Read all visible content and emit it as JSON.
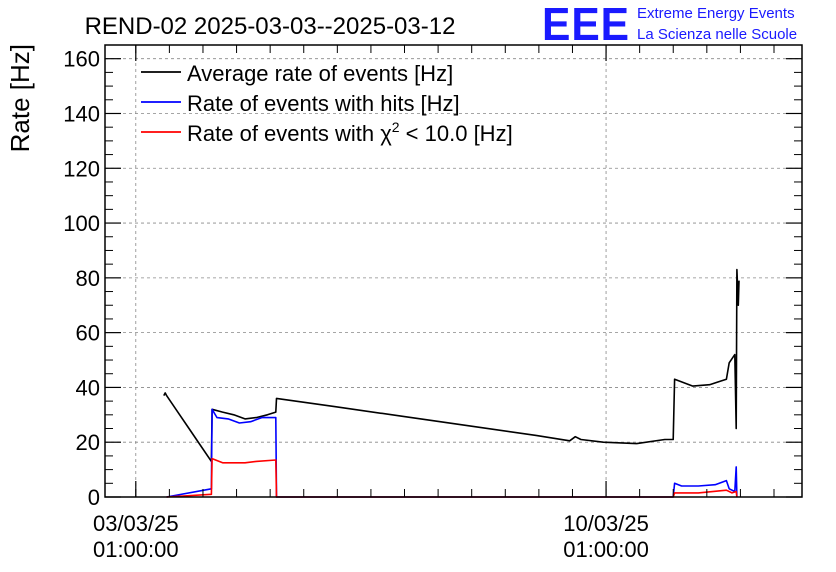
{
  "logo": {
    "mark": "EEE",
    "line1": "Extreme Energy Events",
    "line2": "La Scienza nelle Scuole",
    "color": "#1a1aff"
  },
  "chart_data": {
    "type": "line",
    "title": "REND-02 2025-03-03--2025-03-12",
    "xlabel": "",
    "ylabel": "Rate [Hz]",
    "ylim": [
      0,
      165
    ],
    "yticks": [
      0,
      20,
      40,
      60,
      80,
      100,
      120,
      140,
      160
    ],
    "xlim": [
      "2025-03-02T14:00",
      "2025-03-12T23:00"
    ],
    "xticks": [
      {
        "at": "2025-03-03T01:00",
        "date": "03/03/25",
        "time": "01:00:00"
      },
      {
        "at": "2025-03-10T01:00",
        "date": "10/03/25",
        "time": "01:00:00"
      }
    ],
    "grid": true,
    "legend_position": "top-left",
    "legend": [
      {
        "series": 0,
        "label_main": "Average rate of events [Hz]",
        "label_sup": "",
        "label_tail": ""
      },
      {
        "series": 1,
        "label_main": "Rate of events with hits [Hz]",
        "label_sup": "",
        "label_tail": ""
      },
      {
        "series": 2,
        "label_main": "Rate of events with χ",
        "label_sup": "2",
        "label_tail": " < 10.0 [Hz]"
      }
    ],
    "series": [
      {
        "name": "Average rate of events [Hz]",
        "color": "#000000",
        "points": [
          [
            "2025-03-03T11:00",
            37
          ],
          [
            "2025-03-03T11:30",
            38
          ],
          [
            "2025-03-03T12:00",
            37
          ],
          [
            "2025-03-03T16:00",
            31
          ],
          [
            "2025-03-03T20:00",
            25
          ],
          [
            "2025-03-04T00:00",
            19
          ],
          [
            "2025-03-04T04:00",
            13
          ],
          [
            "2025-03-04T04:15",
            32
          ],
          [
            "2025-03-04T08:00",
            31
          ],
          [
            "2025-03-04T12:00",
            30
          ],
          [
            "2025-03-04T16:00",
            28.5
          ],
          [
            "2025-03-04T20:00",
            29
          ],
          [
            "2025-03-05T00:00",
            30
          ],
          [
            "2025-03-05T03:00",
            31
          ],
          [
            "2025-03-05T03:15",
            36
          ],
          [
            "2025-03-06T00:00",
            33
          ],
          [
            "2025-03-07T00:00",
            29.5
          ],
          [
            "2025-03-08T00:00",
            26
          ],
          [
            "2025-03-09T00:00",
            22.5
          ],
          [
            "2025-03-09T12:00",
            20.5
          ],
          [
            "2025-03-09T14:00",
            22
          ],
          [
            "2025-03-09T16:00",
            21
          ],
          [
            "2025-03-10T00:00",
            20
          ],
          [
            "2025-03-10T12:00",
            19.5
          ],
          [
            "2025-03-10T22:00",
            21
          ],
          [
            "2025-03-11T01:00",
            21
          ],
          [
            "2025-03-11T01:30",
            43
          ],
          [
            "2025-03-11T04:00",
            42
          ],
          [
            "2025-03-11T08:00",
            40.5
          ],
          [
            "2025-03-11T14:00",
            41
          ],
          [
            "2025-03-11T20:00",
            43
          ],
          [
            "2025-03-11T21:00",
            49
          ],
          [
            "2025-03-11T23:00",
            52
          ],
          [
            "2025-03-11T23:30",
            25
          ],
          [
            "2025-03-11T23:45",
            83
          ],
          [
            "2025-03-12T00:15",
            70
          ],
          [
            "2025-03-12T00:30",
            79
          ]
        ]
      },
      {
        "name": "Rate of events with hits [Hz]",
        "color": "#0000ff",
        "points": [
          [
            "2025-03-03T12:00",
            0
          ],
          [
            "2025-03-04T04:00",
            3
          ],
          [
            "2025-03-04T04:15",
            32
          ],
          [
            "2025-03-04T06:00",
            29
          ],
          [
            "2025-03-04T10:00",
            28.5
          ],
          [
            "2025-03-04T14:00",
            27
          ],
          [
            "2025-03-04T18:00",
            27.5
          ],
          [
            "2025-03-04T22:00",
            29
          ],
          [
            "2025-03-05T03:00",
            29
          ],
          [
            "2025-03-05T03:15",
            0
          ],
          [
            "2025-03-11T01:00",
            0
          ],
          [
            "2025-03-11T01:30",
            5
          ],
          [
            "2025-03-11T04:00",
            4
          ],
          [
            "2025-03-11T10:00",
            4
          ],
          [
            "2025-03-11T16:00",
            4.5
          ],
          [
            "2025-03-11T20:00",
            6
          ],
          [
            "2025-03-11T21:00",
            3
          ],
          [
            "2025-03-11T23:00",
            2
          ],
          [
            "2025-03-11T23:30",
            11
          ],
          [
            "2025-03-11T23:45",
            0
          ]
        ]
      },
      {
        "name": "Rate of events with chi2 < 10.0 [Hz]",
        "color": "#ff0000",
        "points": [
          [
            "2025-03-03T12:00",
            0
          ],
          [
            "2025-03-04T04:00",
            1
          ],
          [
            "2025-03-04T04:15",
            14
          ],
          [
            "2025-03-04T08:00",
            12.5
          ],
          [
            "2025-03-04T12:00",
            12.5
          ],
          [
            "2025-03-04T16:00",
            12.5
          ],
          [
            "2025-03-04T20:00",
            13
          ],
          [
            "2025-03-05T03:00",
            13.5
          ],
          [
            "2025-03-05T03:15",
            0
          ],
          [
            "2025-03-11T01:00",
            0
          ],
          [
            "2025-03-11T01:30",
            1.5
          ],
          [
            "2025-03-11T10:00",
            1.5
          ],
          [
            "2025-03-11T20:00",
            2.5
          ],
          [
            "2025-03-11T22:00",
            1.5
          ],
          [
            "2025-03-11T23:30",
            2
          ],
          [
            "2025-03-11T23:45",
            0
          ]
        ]
      }
    ]
  }
}
